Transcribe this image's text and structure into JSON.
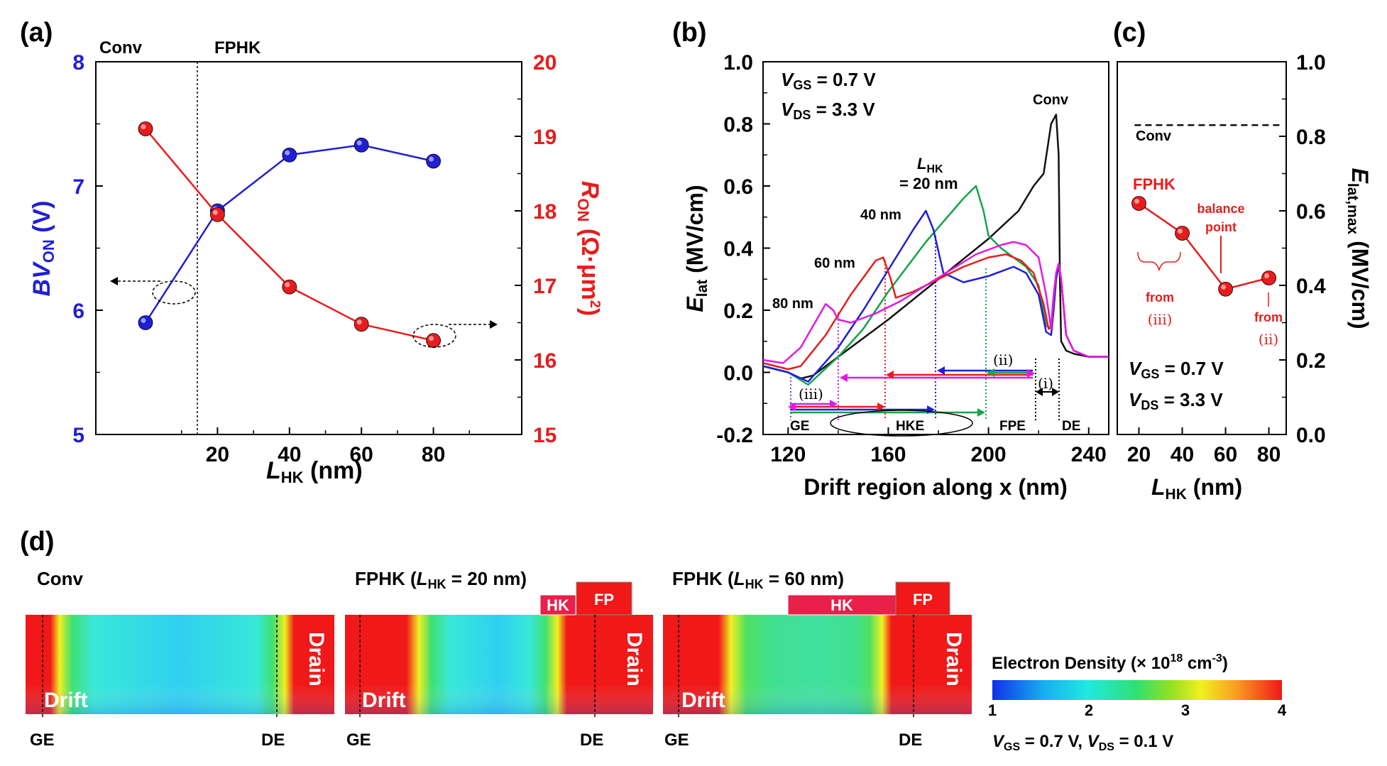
{
  "panel_labels": {
    "a": "(a)",
    "b": "(b)",
    "c": "(c)",
    "d": "(d)"
  },
  "panel_a": {
    "region_left": "Conv",
    "region_right": "FPHK",
    "xlabel_main": "L",
    "xlabel_sub": "HK",
    "xlabel_unit": " (nm)",
    "ylabel_left_main": "BV",
    "ylabel_left_sub": "ON",
    "ylabel_left_unit": " (V)",
    "ylabel_right_main": "R",
    "ylabel_right_sub": "ON",
    "ylabel_right_unit": " (Ω·μm",
    "ylabel_right_sup": "2",
    "ylabel_right_close": ")",
    "left_color": "#1f1fd6",
    "right_color": "#e81c1c"
  },
  "panel_b": {
    "vgs_main": "V",
    "vgs_sub": "GS",
    "vgs_val": " = 0.7 V",
    "vds_main": "V",
    "vds_sub": "DS",
    "vds_val": " = 3.3 V",
    "conv_label": "Conv",
    "lhk_label_main": "L",
    "lhk_label_sub": "HK",
    "lhk_label_val": "= 20 nm",
    "label_40": "40 nm",
    "label_60": "60 nm",
    "label_80": "80 nm",
    "ylabel_main": "E",
    "ylabel_sub": "lat",
    "ylabel_unit": " (MV/cm)",
    "xlabel": "Drift region along x (nm)",
    "ann_i": "(i)",
    "ann_ii": "(ii)",
    "ann_iii": "(iii)",
    "lbl_ge": "GE",
    "lbl_hke": "HKE",
    "lbl_fpe": "FPE",
    "lbl_de": "DE"
  },
  "panel_c": {
    "conv_label": "Conv",
    "fphk_label": "FPHK",
    "balance_1": "balance",
    "balance_2": "point",
    "from_1": "from",
    "from_iii": "(iii)",
    "from_2": "from",
    "from_ii": "(ii)",
    "vgs_main": "V",
    "vgs_sub": "GS",
    "vgs_val": " = 0.7 V",
    "vds_main": "V",
    "vds_sub": "DS",
    "vds_val": " = 3.3 V",
    "ylabel_main": "E",
    "ylabel_sub": "lat,max",
    "ylabel_unit": " (MV/cm)",
    "xlabel_main": "L",
    "xlabel_sub": "HK",
    "xlabel_unit": " (nm)"
  },
  "panel_d": {
    "title_conv": "Conv",
    "title_fphk20_pre": "FPHK (",
    "title_fphk20_l": "L",
    "title_fphk20_sub": "HK",
    "title_fphk20_post": " = 20 nm)",
    "title_fphk60_pre": "FPHK (",
    "title_fphk60_l": "L",
    "title_fphk60_sub": "HK",
    "title_fphk60_post": " = 60 nm)",
    "hk_label": "HK",
    "fp_label": "FP",
    "drift_label": "Drift",
    "drain_label": "Drain",
    "ge_label": "GE",
    "de_label": "DE",
    "colorbar_title_pre": "Electron Density (× 10",
    "colorbar_title_sup1": "18",
    "colorbar_title_mid": " cm",
    "colorbar_title_sup2": "-3",
    "colorbar_title_post": ")",
    "colorbar_ticks": [
      "1",
      "2",
      "3",
      "4"
    ],
    "bias_vgs_main": "V",
    "bias_vgs_sub": "GS",
    "bias_vgs_val": " = 0.7 V, ",
    "bias_vds_main": "V",
    "bias_vds_sub": "DS",
    "bias_vds_val": " = 0.1 V"
  },
  "chart_data": [
    {
      "id": "a",
      "type": "line",
      "title": "",
      "xlabel": "L_HK (nm)",
      "ylabel": "BV_ON (V)",
      "ylabel_right": "R_ON (Ω·μm^2)",
      "categories": [
        "Conv",
        "20",
        "40",
        "60",
        "80"
      ],
      "x": [
        0,
        20,
        40,
        60,
        80
      ],
      "x_tick_labels": [
        "20",
        "40",
        "60",
        "80"
      ],
      "ylim": [
        5,
        8
      ],
      "yticks": [
        "5",
        "6",
        "7",
        "8"
      ],
      "ylim_right": [
        15,
        20
      ],
      "yticks_right": [
        "15",
        "16",
        "17",
        "18",
        "19",
        "20"
      ],
      "series": [
        {
          "name": "BV_ON",
          "axis": "left",
          "color": "#1f1fd6",
          "values": [
            5.9,
            6.8,
            7.25,
            7.33,
            7.2
          ]
        },
        {
          "name": "R_ON",
          "axis": "right",
          "color": "#e81c1c",
          "values": [
            19.1,
            17.95,
            16.98,
            16.48,
            16.26
          ]
        }
      ]
    },
    {
      "id": "b",
      "type": "line",
      "xlabel": "Drift region along x (nm)",
      "ylabel": "E_lat (MV/cm)",
      "xlim": [
        110,
        248
      ],
      "xticks": [
        "120",
        "160",
        "200",
        "240"
      ],
      "ylim": [
        -0.2,
        1.0
      ],
      "yticks": [
        "-0.2",
        "0.0",
        "0.2",
        "0.4",
        "0.6",
        "0.8",
        "1.0"
      ],
      "series": [
        {
          "name": "Conv",
          "color": "#111111",
          "x": [
            110,
            120,
            125,
            130,
            140,
            160,
            180,
            200,
            212,
            218,
            222,
            225,
            227,
            228,
            228.5,
            229,
            231,
            234,
            240,
            248
          ],
          "y": [
            0.02,
            0.0,
            -0.02,
            -0.01,
            0.05,
            0.17,
            0.3,
            0.43,
            0.52,
            0.6,
            0.64,
            0.8,
            0.83,
            0.7,
            0.3,
            0.1,
            0.07,
            0.06,
            0.05,
            0.05
          ]
        },
        {
          "name": "LHK = 20 nm",
          "color": "#16a34a",
          "x": [
            110,
            120,
            128,
            140,
            150,
            160,
            175,
            190,
            195,
            198,
            200,
            205,
            215,
            220,
            223,
            225,
            226,
            227,
            228,
            229,
            231,
            234,
            240,
            248
          ],
          "y": [
            0.02,
            0.0,
            -0.04,
            0.05,
            0.14,
            0.26,
            0.42,
            0.56,
            0.6,
            0.52,
            0.44,
            0.4,
            0.34,
            0.28,
            0.15,
            0.14,
            0.2,
            0.3,
            0.35,
            0.3,
            0.12,
            0.07,
            0.05,
            0.05
          ]
        },
        {
          "name": "40 nm",
          "color": "#1f1fd6",
          "x": [
            110,
            120,
            128,
            140,
            150,
            160,
            170,
            175,
            178,
            182,
            190,
            200,
            210,
            215,
            220,
            223,
            225,
            226,
            227,
            228,
            229,
            231,
            234,
            240,
            248
          ],
          "y": [
            0.02,
            0.0,
            -0.03,
            0.08,
            0.2,
            0.33,
            0.46,
            0.52,
            0.46,
            0.32,
            0.29,
            0.31,
            0.34,
            0.32,
            0.25,
            0.13,
            0.12,
            0.2,
            0.3,
            0.34,
            0.3,
            0.12,
            0.07,
            0.05,
            0.05
          ]
        },
        {
          "name": "60 nm",
          "color": "#e81c1c",
          "x": [
            110,
            120,
            125,
            135,
            145,
            155,
            158,
            161,
            163,
            170,
            180,
            190,
            200,
            207,
            213,
            218,
            222,
            224,
            225,
            226,
            227,
            228,
            229,
            231,
            234,
            240,
            248
          ],
          "y": [
            0.03,
            0.01,
            0.02,
            0.12,
            0.25,
            0.36,
            0.37,
            0.3,
            0.24,
            0.26,
            0.3,
            0.34,
            0.37,
            0.38,
            0.36,
            0.32,
            0.22,
            0.14,
            0.15,
            0.25,
            0.32,
            0.35,
            0.3,
            0.12,
            0.07,
            0.05,
            0.05
          ]
        },
        {
          "name": "80 nm",
          "color": "#e01be0",
          "x": [
            110,
            118,
            125,
            130,
            135,
            138,
            140,
            145,
            155,
            165,
            175,
            185,
            195,
            205,
            210,
            215,
            220,
            223,
            225,
            226,
            227,
            228,
            229,
            231,
            234,
            240,
            248
          ],
          "y": [
            0.04,
            0.03,
            0.08,
            0.15,
            0.22,
            0.2,
            0.17,
            0.16,
            0.19,
            0.23,
            0.28,
            0.33,
            0.38,
            0.41,
            0.42,
            0.41,
            0.37,
            0.25,
            0.14,
            0.24,
            0.32,
            0.35,
            0.3,
            0.12,
            0.07,
            0.05,
            0.05
          ]
        }
      ],
      "annotations": [
        "V_GS = 0.7 V",
        "V_DS = 3.3 V",
        "Conv",
        "L_HK = 20 nm",
        "40 nm",
        "60 nm",
        "80 nm",
        "(i)",
        "(ii)",
        "(iii)",
        "GE",
        "HKE",
        "FPE",
        "DE"
      ]
    },
    {
      "id": "c",
      "type": "line",
      "xlabel": "L_HK (nm)",
      "ylabel": "E_lat,max (MV/cm)",
      "x": [
        20,
        40,
        60,
        80
      ],
      "xlim": [
        10,
        88
      ],
      "xticks": [
        "20",
        "40",
        "60",
        "80"
      ],
      "ylim": [
        0.0,
        1.0
      ],
      "yticks": [
        "0.0",
        "0.2",
        "0.4",
        "0.6",
        "0.8",
        "1.0"
      ],
      "series": [
        {
          "name": "FPHK",
          "color": "#e81c1c",
          "values": [
            0.62,
            0.54,
            0.39,
            0.42
          ]
        },
        {
          "name": "Conv",
          "color": "#111111",
          "style": "dashed",
          "values": [
            0.83,
            0.83,
            0.83,
            0.83
          ]
        }
      ],
      "annotations": [
        "Conv",
        "FPHK",
        "balance point",
        "from (iii)",
        "from (ii)",
        "V_GS = 0.7 V",
        "V_DS = 3.3 V"
      ]
    },
    {
      "id": "d",
      "type": "heatmap",
      "title": "Electron Density (× 10^18 cm^-3)",
      "colorbar_range": [
        1,
        4
      ],
      "colorbar_ticks": [
        "1",
        "2",
        "3",
        "4"
      ],
      "maps": [
        "Conv",
        "FPHK (L_HK = 20 nm)",
        "FPHK (L_HK = 60 nm)"
      ],
      "bias": "V_GS = 0.7 V, V_DS = 0.1 V"
    }
  ]
}
